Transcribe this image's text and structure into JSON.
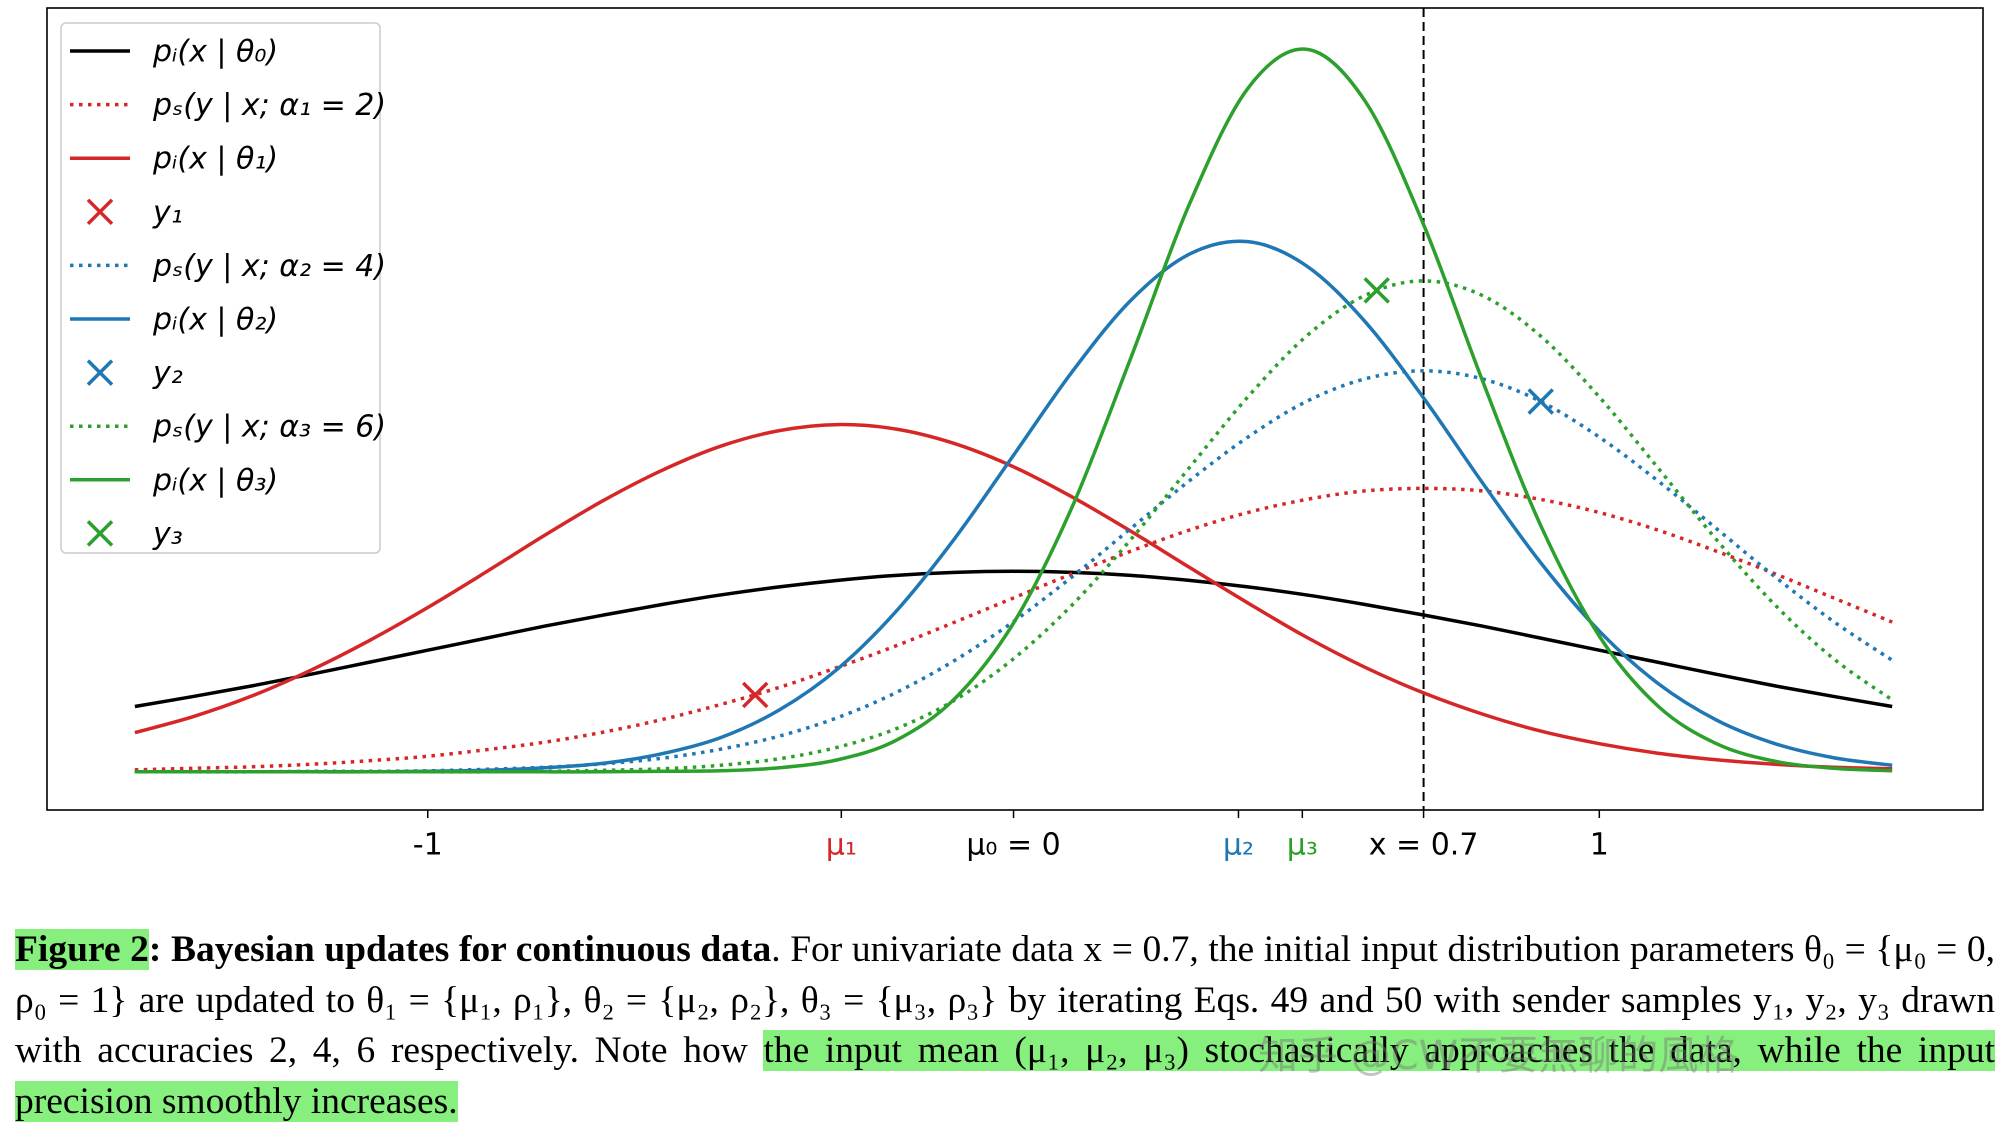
{
  "chart_data": {
    "type": "line",
    "x": [
      -1.5,
      -1.4,
      -1.3,
      -1.2,
      -1.1,
      -1.0,
      -0.9,
      -0.8,
      -0.7,
      -0.6,
      -0.5,
      -0.4,
      -0.3,
      -0.2,
      -0.1,
      0,
      0.1,
      0.2,
      0.3,
      0.4,
      0.5,
      0.6,
      0.7,
      0.8,
      0.9,
      1.0,
      1.1,
      1.2,
      1.3,
      1.4,
      1.5
    ],
    "series": [
      {
        "name": "pᵢ(x | θ₀)",
        "color": "#000000",
        "style": "solid",
        "values": [
          0.13,
          0.15,
          0.171,
          0.194,
          0.218,
          0.242,
          0.266,
          0.29,
          0.312,
          0.333,
          0.352,
          0.368,
          0.381,
          0.391,
          0.397,
          0.399,
          0.397,
          0.391,
          0.381,
          0.368,
          0.352,
          0.333,
          0.312,
          0.29,
          0.266,
          0.242,
          0.218,
          0.194,
          0.171,
          0.15,
          0.13
        ]
      },
      {
        "name": "pₛ(y | x; α₁ = 2)",
        "color": "#d62728",
        "style": "dotted",
        "values": [
          0.004,
          0.007,
          0.01,
          0.015,
          0.022,
          0.031,
          0.044,
          0.059,
          0.079,
          0.104,
          0.134,
          0.168,
          0.208,
          0.251,
          0.298,
          0.346,
          0.394,
          0.439,
          0.481,
          0.516,
          0.542,
          0.559,
          0.564,
          0.559,
          0.542,
          0.516,
          0.481,
          0.439,
          0.394,
          0.346,
          0.298
        ]
      },
      {
        "name": "pᵢ(x | θ₁)",
        "color": "#d62728",
        "style": "solid",
        "values": [
          0.078,
          0.11,
          0.151,
          0.202,
          0.261,
          0.327,
          0.398,
          0.471,
          0.54,
          0.6,
          0.648,
          0.679,
          0.691,
          0.682,
          0.653,
          0.607,
          0.547,
          0.479,
          0.407,
          0.336,
          0.268,
          0.208,
          0.157,
          0.115,
          0.081,
          0.056,
          0.037,
          0.024,
          0.015,
          0.009,
          0.006
        ]
      },
      {
        "name": "y₁",
        "color": "#d62728",
        "style": "marker",
        "x": [
          -0.441
        ],
        "values": [
          0.153
        ]
      },
      {
        "name": "pₛ(y | x; α₂ = 4)",
        "color": "#1f77b4",
        "style": "dotted",
        "values": [
          0.0,
          0.0,
          0.0,
          0.001,
          0.001,
          0.002,
          0.005,
          0.009,
          0.016,
          0.027,
          0.045,
          0.071,
          0.108,
          0.158,
          0.222,
          0.299,
          0.388,
          0.484,
          0.579,
          0.666,
          0.737,
          0.782,
          0.798,
          0.782,
          0.737,
          0.666,
          0.579,
          0.484,
          0.388,
          0.299,
          0.222
        ]
      },
      {
        "name": "pᵢ(x | θ₂)",
        "color": "#1f77b4",
        "style": "solid",
        "values": [
          0.0,
          0.0,
          0.0,
          0.0,
          0.0,
          0.001,
          0.003,
          0.008,
          0.017,
          0.036,
          0.068,
          0.123,
          0.205,
          0.32,
          0.465,
          0.63,
          0.796,
          0.938,
          1.03,
          1.055,
          1.007,
          0.896,
          0.744,
          0.576,
          0.416,
          0.28,
          0.176,
          0.103,
          0.056,
          0.028,
          0.013
        ]
      },
      {
        "name": "y₂",
        "color": "#1f77b4",
        "style": "marker",
        "x": [
          0.9
        ],
        "values": [
          0.737
        ]
      },
      {
        "name": "pₛ(y | x; α₃ = 6)",
        "color": "#2ca02c",
        "style": "dotted",
        "values": [
          0.0,
          0.0,
          0.0,
          0.0,
          0.0,
          0.0,
          0.0,
          0.001,
          0.003,
          0.006,
          0.013,
          0.026,
          0.049,
          0.086,
          0.143,
          0.225,
          0.332,
          0.462,
          0.605,
          0.746,
          0.867,
          0.948,
          0.977,
          0.948,
          0.867,
          0.746,
          0.605,
          0.462,
          0.332,
          0.225,
          0.143
        ]
      },
      {
        "name": "pᵢ(x | θ₃)",
        "color": "#2ca02c",
        "style": "solid",
        "values": [
          0.0,
          0.0,
          0.0,
          0.0,
          0.0,
          0.0,
          0.0,
          0.0,
          0.0,
          0.001,
          0.002,
          0.008,
          0.024,
          0.063,
          0.146,
          0.296,
          0.527,
          0.823,
          1.129,
          1.36,
          1.438,
          1.335,
          1.089,
          0.78,
          0.49,
          0.27,
          0.131,
          0.056,
          0.021,
          0.007,
          0.002
        ]
      },
      {
        "name": "y₃",
        "color": "#2ca02c",
        "style": "marker",
        "x": [
          0.62
        ],
        "values": [
          0.958
        ]
      }
    ],
    "xlim": [
      -1.65,
      1.655
    ],
    "ylim": [
      -0.076,
      1.52
    ],
    "xticks": [
      -1,
      {
        "value": -0.294,
        "label": "μ₁",
        "color": "#d62728"
      },
      {
        "value": 0,
        "label": "μ₀ = 0",
        "color": "#000000"
      },
      {
        "value": 0.384,
        "label": "μ₂",
        "color": "#1f77b4"
      },
      {
        "value": 0.493,
        "label": "μ₃",
        "color": "#2ca02c"
      },
      {
        "value": 0.7,
        "label": "x = 0.7",
        "color": "#000000"
      },
      1
    ],
    "vline": 0.7,
    "legend": "upper left",
    "grid": false
  },
  "caption": {
    "label": "Figure 2",
    "title": ": Bayesian updates for continuous data",
    "text": ". For univariate data x = 0.7, the initial input distribution parameters θ₀ = {μ₀ = 0, ρ₀ = 1} are updated to θ₁ = {μ₁, ρ₁}, θ₂ = {μ₂, ρ₂}, θ₃ = {μ₃, ρ₃} by iterating Eqs. 49 and 50 with sender samples y₁, y₂, y₃ drawn with accuracies 2, 4, 6 respectively. Note how ",
    "highlight": "the input mean (μ₁, μ₂, μ₃) stochastically approaches the data, while the input precision smoothly increases."
  },
  "watermark": "知乎 @CW不要無聊的風格"
}
